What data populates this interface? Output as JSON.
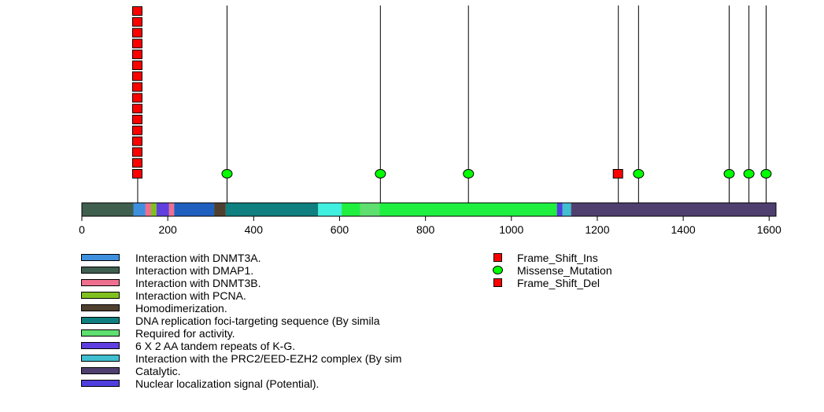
{
  "chart_data": {
    "type": "lollipop",
    "protein_length": 1616,
    "xlim": [
      0,
      1616
    ],
    "axis": {
      "ticks": [
        0,
        200,
        400,
        600,
        800,
        1000,
        1200,
        1400,
        1600
      ],
      "tick_labels": [
        "0",
        "200",
        "400",
        "600",
        "800",
        "1000",
        "1200",
        "1400",
        "1600"
      ]
    },
    "domains": [
      {
        "label": "Interaction with DMAP1.",
        "start": 1,
        "end": 120,
        "color": "#3f5f4f"
      },
      {
        "label": "Interaction with DNMT3A.",
        "start": 121,
        "end": 148,
        "color": "#3f8fdf"
      },
      {
        "label": "Interaction with DNMT3B.",
        "start": 149,
        "end": 161,
        "color": "#ef6f8f"
      },
      {
        "label": "Interaction with PCNA.",
        "start": 162,
        "end": 174,
        "color": "#7fbf1f"
      },
      {
        "label": "6 X 2 AA tandem repeats of K-G.",
        "start": 175,
        "end": 203,
        "color": "#5f3fdf"
      },
      {
        "label": "Interaction with DNMT3B.",
        "start": 204,
        "end": 215,
        "color": "#ef6f8f"
      },
      {
        "label": "Interaction with DNMT3A.",
        "start": 216,
        "end": 308,
        "color": "#1f5fbf"
      },
      {
        "label": "Homodimerization.",
        "start": 309,
        "end": 335,
        "color": "#4f3f2f"
      },
      {
        "label": "DNA replication foci-targeting sequence (By simila",
        "start": 336,
        "end": 550,
        "color": "#0f7f7f"
      },
      {
        "label": "Interaction with the PRC2/EED-EZH2 complex (By sim",
        "start": 551,
        "end": 605,
        "color": "#3fefdf"
      },
      {
        "label": "Required for activity.",
        "start": 606,
        "end": 648,
        "color": "#1fef3f"
      },
      {
        "label": "Required for activity.",
        "start": 649,
        "end": 693,
        "color": "#5fdf6f"
      },
      {
        "label": "Required for activity.",
        "start": 694,
        "end": 1106,
        "color": "#1fef3f"
      },
      {
        "label": "Nuclear localization signal (Potential).",
        "start": 1107,
        "end": 1119,
        "color": "#4f3fdf"
      },
      {
        "label": "Interaction with the PRC2/EED-EZH2 complex (By sim",
        "start": 1120,
        "end": 1139,
        "color": "#3fbfcf"
      },
      {
        "label": "Catalytic.",
        "start": 1140,
        "end": 1616,
        "color": "#4f3f6f"
      }
    ],
    "mutations": [
      {
        "pos": 130,
        "type": "Frame_Shift_Ins",
        "count": 16
      },
      {
        "pos": 338,
        "type": "Missense_Mutation",
        "count": 1
      },
      {
        "pos": 695,
        "type": "Missense_Mutation",
        "count": 1
      },
      {
        "pos": 900,
        "type": "Missense_Mutation",
        "count": 1
      },
      {
        "pos": 1249,
        "type": "Frame_Shift_Del",
        "count": 1
      },
      {
        "pos": 1296,
        "type": "Missense_Mutation",
        "count": 1
      },
      {
        "pos": 1507,
        "type": "Missense_Mutation",
        "count": 1
      },
      {
        "pos": 1553,
        "type": "Missense_Mutation",
        "count": 1
      },
      {
        "pos": 1593,
        "type": "Missense_Mutation",
        "count": 1
      }
    ],
    "domain_legend": [
      {
        "label": "Interaction with DNMT3A.",
        "color": "#3f8fdf"
      },
      {
        "label": "Interaction with DMAP1.",
        "color": "#3f5f4f"
      },
      {
        "label": "Interaction with DNMT3B.",
        "color": "#ef6f8f"
      },
      {
        "label": "Interaction with PCNA.",
        "color": "#7fbf1f"
      },
      {
        "label": "Homodimerization.",
        "color": "#4f3f2f"
      },
      {
        "label": "DNA replication foci-targeting sequence (By simila",
        "color": "#0f7f7f"
      },
      {
        "label": "Required for activity.",
        "color": "#5fdf6f"
      },
      {
        "label": "6 X 2 AA tandem repeats of K-G.",
        "color": "#5f3fdf"
      },
      {
        "label": "Interaction with the PRC2/EED-EZH2 complex (By sim",
        "color": "#3fbfcf"
      },
      {
        "label": "Catalytic.",
        "color": "#4f3f6f"
      },
      {
        "label": "Nuclear localization signal (Potential).",
        "color": "#4f3fdf"
      }
    ],
    "mutation_legend": [
      {
        "label": "Frame_Shift_Ins",
        "shape": "square",
        "color": "#ff0000"
      },
      {
        "label": "Missense_Mutation",
        "shape": "circle",
        "color": "#00ff00"
      },
      {
        "label": "Frame_Shift_Del",
        "shape": "square",
        "color": "#ff0000"
      }
    ]
  }
}
